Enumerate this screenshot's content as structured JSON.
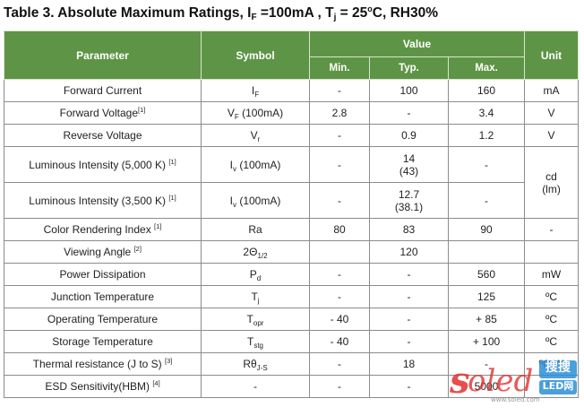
{
  "title": {
    "pre": "Table 3. Absolute Maximum Ratings, I",
    "if_sub": "F",
    "mid": " =100mA , T",
    "tj_sub": "j",
    "tj_eq": " = 25",
    "deg": "o",
    "post": "C, RH30%"
  },
  "header": {
    "parameter": "Parameter",
    "symbol": "Symbol",
    "value": "Value",
    "min": "Min.",
    "typ": "Typ.",
    "max": "Max.",
    "unit": "Unit"
  },
  "rows": [
    {
      "param": "Forward Current",
      "note": "",
      "sym": "I",
      "sym_sub": "F",
      "sym_suffix": "",
      "min": "-",
      "typ": "100",
      "max": "160",
      "unit": "mA"
    },
    {
      "param": "Forward Voltage",
      "note": "[1]",
      "sym": "V",
      "sym_sub": "F",
      "sym_suffix": " (100mA)",
      "min": "2.8",
      "typ": "-",
      "max": "3.4",
      "unit": "V"
    },
    {
      "param": "Reverse Voltage",
      "note": "",
      "sym": "V",
      "sym_sub": "r",
      "sym_suffix": "",
      "min": "-",
      "typ": "0.9",
      "max": "1.2",
      "unit": "V"
    },
    {
      "param": "Luminous Intensity (5,000 K) ",
      "note": "[1]",
      "sym": "I",
      "sym_sub": "v",
      "sym_suffix": " (100mA)",
      "min": "-",
      "typ": "14",
      "typ2": "(43)",
      "max": "-",
      "unit": "cd",
      "unit2": "(lm)"
    },
    {
      "param": "Luminous Intensity (3,500 K) ",
      "note": "[1]",
      "sym": "I",
      "sym_sub": "v",
      "sym_suffix": " (100mA)",
      "min": "-",
      "typ": "12.7",
      "typ2": "(38.1)",
      "max": "-"
    },
    {
      "param": "Color  Rendering  Index ",
      "note": "[1]",
      "sym": "Ra",
      "sym_sub": "",
      "sym_suffix": "",
      "min": "80",
      "typ": "83",
      "max": "90",
      "unit": "-"
    },
    {
      "param": "Viewing Angle ",
      "note": "[2]",
      "sym": "2Θ",
      "sym_sub": "1/2",
      "sym_suffix": "",
      "min": "",
      "typ": "120",
      "max": "",
      "unit": ""
    },
    {
      "param": "Power Dissipation",
      "note": "",
      "sym": "P",
      "sym_sub": "d",
      "sym_suffix": "",
      "min": "-",
      "typ": "-",
      "max": "560",
      "unit": "mW"
    },
    {
      "param": "Junction Temperature",
      "note": "",
      "sym": "T",
      "sym_sub": "j",
      "sym_suffix": "",
      "min": "-",
      "typ": "-",
      "max": "125",
      "unit": "ºC"
    },
    {
      "param": "Operating Temperature",
      "note": "",
      "sym": "T",
      "sym_sub": "opr",
      "sym_suffix": "",
      "min": "- 40",
      "typ": "-",
      "max": "+ 85",
      "unit": "ºC"
    },
    {
      "param": "Storage  Temperature",
      "note": "",
      "sym": "T",
      "sym_sub": "stg",
      "sym_suffix": "",
      "min": "- 40",
      "typ": "-",
      "max": "+ 100",
      "unit": "ºC"
    },
    {
      "param": "Thermal resistance (J to S) ",
      "note": "[3]",
      "sym": "Rθ",
      "sym_sub": "J-S",
      "sym_suffix": "",
      "min": "-",
      "typ": "18",
      "max": "-",
      "unit": "ºC/W"
    },
    {
      "param": "ESD Sensitivity(HBM) ",
      "note": "[4]",
      "sym": "-",
      "sym_sub": "",
      "sym_suffix": "",
      "min": "-",
      "typ": "-",
      "max": "5000",
      "unit": "V"
    }
  ],
  "watermark": {
    "brand": "soled",
    "cn": "搜搜",
    "tag": "LED网",
    "url": "www.soled.com"
  },
  "colors": {
    "header_bg": "#5e9446",
    "header_text": "#ffffff",
    "watermark_red": "#e0322e",
    "watermark_blue": "#2a8fd6"
  }
}
